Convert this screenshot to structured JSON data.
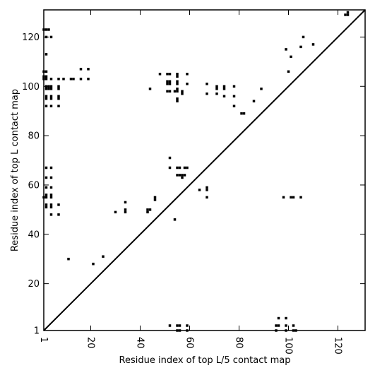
{
  "chart_data": {
    "type": "scatter",
    "title": "",
    "xlabel": "Residue index of top L/5 contact map",
    "ylabel": "Residue index of top L contact map",
    "xlim": [
      1,
      131
    ],
    "ylim": [
      1,
      131
    ],
    "x_ticks": [
      {
        "value": 1,
        "label": "1"
      },
      {
        "value": 20,
        "label": "20"
      },
      {
        "value": 40,
        "label": "40"
      },
      {
        "value": 60,
        "label": "60"
      },
      {
        "value": 80,
        "label": "80"
      },
      {
        "value": 100,
        "label": "100"
      },
      {
        "value": 120,
        "label": "120"
      }
    ],
    "y_ticks": [
      {
        "value": 1,
        "label": "1"
      },
      {
        "value": 20,
        "label": "20"
      },
      {
        "value": 40,
        "label": "40"
      },
      {
        "value": 60,
        "label": "60"
      },
      {
        "value": 80,
        "label": "80"
      },
      {
        "value": 100,
        "label": "100"
      },
      {
        "value": 120,
        "label": "120"
      }
    ],
    "diagonal": true,
    "grid": false,
    "marker": "square",
    "color": "#000000",
    "points": [
      [
        1,
        123
      ],
      [
        2,
        123
      ],
      [
        3,
        123
      ],
      [
        2,
        120
      ],
      [
        4,
        120
      ],
      [
        2,
        113
      ],
      [
        1,
        106
      ],
      [
        2,
        106
      ],
      [
        1,
        104
      ],
      [
        2,
        104
      ],
      [
        1,
        103
      ],
      [
        2,
        103
      ],
      [
        4,
        103
      ],
      [
        7,
        103
      ],
      [
        9,
        103
      ],
      [
        12,
        103
      ],
      [
        13,
        103
      ],
      [
        16,
        107
      ],
      [
        19,
        107
      ],
      [
        16,
        103
      ],
      [
        19,
        103
      ],
      [
        2,
        100
      ],
      [
        3,
        100
      ],
      [
        4,
        100
      ],
      [
        7,
        100
      ],
      [
        2,
        99
      ],
      [
        3,
        99
      ],
      [
        4,
        99
      ],
      [
        7,
        99
      ],
      [
        2,
        96
      ],
      [
        4,
        96
      ],
      [
        7,
        96
      ],
      [
        2,
        95
      ],
      [
        4,
        95
      ],
      [
        7,
        95
      ],
      [
        2,
        92
      ],
      [
        4,
        92
      ],
      [
        7,
        92
      ],
      [
        2,
        67
      ],
      [
        4,
        67
      ],
      [
        2,
        63
      ],
      [
        4,
        63
      ],
      [
        2,
        59
      ],
      [
        4,
        59
      ],
      [
        2,
        56
      ],
      [
        4,
        56
      ],
      [
        1,
        55
      ],
      [
        2,
        55
      ],
      [
        4,
        55
      ],
      [
        2,
        52
      ],
      [
        4,
        52
      ],
      [
        7,
        52
      ],
      [
        2,
        51
      ],
      [
        4,
        51
      ],
      [
        4,
        48
      ],
      [
        7,
        48
      ],
      [
        11,
        30
      ],
      [
        21,
        28
      ],
      [
        25,
        31
      ],
      [
        30,
        49
      ],
      [
        34,
        53
      ],
      [
        34,
        50
      ],
      [
        34,
        49
      ],
      [
        43,
        50
      ],
      [
        44,
        50
      ],
      [
        43,
        49
      ],
      [
        44,
        99
      ],
      [
        46,
        55
      ],
      [
        46,
        54
      ],
      [
        48,
        105
      ],
      [
        51,
        105
      ],
      [
        52,
        105
      ],
      [
        55,
        105
      ],
      [
        55,
        104
      ],
      [
        51,
        102
      ],
      [
        52,
        102
      ],
      [
        51,
        101
      ],
      [
        52,
        101
      ],
      [
        55,
        102
      ],
      [
        55,
        101
      ],
      [
        59,
        105
      ],
      [
        59,
        101
      ],
      [
        51,
        98
      ],
      [
        52,
        98
      ],
      [
        54,
        98
      ],
      [
        55,
        98
      ],
      [
        55,
        99
      ],
      [
        57,
        98
      ],
      [
        57,
        97
      ],
      [
        55,
        95
      ],
      [
        55,
        94
      ],
      [
        52,
        71
      ],
      [
        52,
        67
      ],
      [
        55,
        67
      ],
      [
        56,
        67
      ],
      [
        58,
        67
      ],
      [
        59,
        67
      ],
      [
        55,
        64
      ],
      [
        56,
        64
      ],
      [
        57,
        64
      ],
      [
        58,
        64
      ],
      [
        57,
        63
      ],
      [
        54,
        46
      ],
      [
        64,
        58
      ],
      [
        67,
        59
      ],
      [
        67,
        58
      ],
      [
        67,
        55
      ],
      [
        67,
        101
      ],
      [
        67,
        97
      ],
      [
        71,
        100
      ],
      [
        71,
        99
      ],
      [
        71,
        97
      ],
      [
        74,
        100
      ],
      [
        74,
        99
      ],
      [
        74,
        96
      ],
      [
        78,
        100
      ],
      [
        78,
        96
      ],
      [
        78,
        92
      ],
      [
        81,
        89
      ],
      [
        82,
        89
      ],
      [
        86,
        94
      ],
      [
        89,
        99
      ],
      [
        99,
        115
      ],
      [
        100,
        106
      ],
      [
        101,
        112
      ],
      [
        105,
        116
      ],
      [
        106,
        120
      ],
      [
        110,
        117
      ],
      [
        123,
        129
      ],
      [
        124,
        129
      ],
      [
        124,
        130
      ],
      [
        98,
        55
      ],
      [
        101,
        55
      ],
      [
        102,
        55
      ],
      [
        105,
        55
      ],
      [
        52,
        3
      ],
      [
        55,
        3
      ],
      [
        56,
        3
      ],
      [
        59,
        3
      ],
      [
        55,
        1
      ],
      [
        56,
        1
      ],
      [
        59,
        1
      ],
      [
        96,
        6
      ],
      [
        99,
        6
      ],
      [
        96,
        3
      ],
      [
        95,
        3
      ],
      [
        99,
        3
      ],
      [
        102,
        3
      ],
      [
        95,
        1
      ],
      [
        99,
        1
      ],
      [
        102,
        1
      ],
      [
        103,
        1
      ]
    ]
  }
}
